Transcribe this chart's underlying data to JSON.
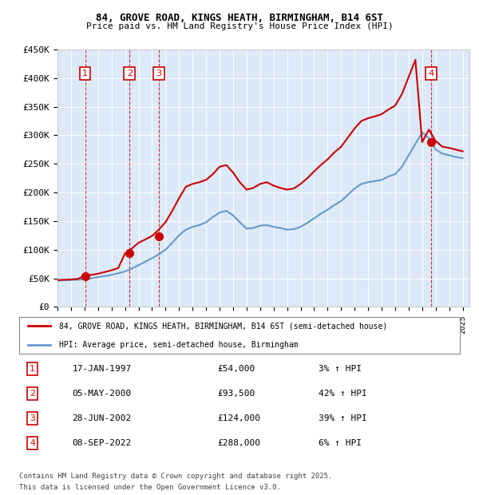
{
  "title": "84, GROVE ROAD, KINGS HEATH, BIRMINGHAM, B14 6ST",
  "subtitle": "Price paid vs. HM Land Registry's House Price Index (HPI)",
  "legend_line1": "84, GROVE ROAD, KINGS HEATH, BIRMINGHAM, B14 6ST (semi-detached house)",
  "legend_line2": "HPI: Average price, semi-detached house, Birmingham",
  "footer1": "Contains HM Land Registry data © Crown copyright and database right 2025.",
  "footer2": "This data is licensed under the Open Government Licence v3.0.",
  "ylabel": "",
  "ylim": [
    0,
    450000
  ],
  "yticks": [
    0,
    50000,
    100000,
    150000,
    200000,
    250000,
    300000,
    350000,
    400000,
    450000
  ],
  "ytick_labels": [
    "£0",
    "£50K",
    "£100K",
    "£150K",
    "£200K",
    "£250K",
    "£300K",
    "£350K",
    "£400K",
    "£450K"
  ],
  "xlim_start": 1995.0,
  "xlim_end": 2025.5,
  "background_color": "#dce9f8",
  "plot_bg_color": "#dce9f8",
  "line_color_red": "#cc0000",
  "line_color_blue": "#6699cc",
  "purchases": [
    {
      "num": 1,
      "date": "17-JAN-1997",
      "year": 1997.04,
      "price": 54000,
      "pct": "3%",
      "direction": "↑"
    },
    {
      "num": 2,
      "date": "05-MAY-2000",
      "year": 2000.34,
      "price": 93500,
      "pct": "42%",
      "direction": "↑"
    },
    {
      "num": 3,
      "date": "28-JUN-2002",
      "year": 2002.49,
      "price": 124000,
      "pct": "39%",
      "direction": "↑"
    },
    {
      "num": 4,
      "date": "08-SEP-2022",
      "year": 2022.68,
      "price": 288000,
      "pct": "6%",
      "direction": "↑"
    }
  ],
  "hpi_years": [
    1995,
    1995.5,
    1996,
    1996.5,
    1997,
    1997.5,
    1998,
    1998.5,
    1999,
    1999.5,
    2000,
    2000.5,
    2001,
    2001.5,
    2002,
    2002.5,
    2003,
    2003.5,
    2004,
    2004.5,
    2005,
    2005.5,
    2006,
    2006.5,
    2007,
    2007.5,
    2008,
    2008.5,
    2009,
    2009.5,
    2010,
    2010.5,
    2011,
    2011.5,
    2012,
    2012.5,
    2013,
    2013.5,
    2014,
    2014.5,
    2015,
    2015.5,
    2016,
    2016.5,
    2017,
    2017.5,
    2018,
    2018.5,
    2019,
    2019.5,
    2020,
    2020.5,
    2021,
    2021.5,
    2022,
    2022.5,
    2023,
    2023.5,
    2024,
    2024.5,
    2025
  ],
  "hpi_values": [
    46000,
    46500,
    47000,
    47500,
    48500,
    50000,
    52000,
    54000,
    56000,
    59000,
    62000,
    67000,
    73000,
    79000,
    85000,
    92000,
    100000,
    112000,
    125000,
    135000,
    140000,
    143000,
    148000,
    157000,
    165000,
    168000,
    160000,
    148000,
    137000,
    138000,
    142000,
    143000,
    140000,
    138000,
    135000,
    136000,
    140000,
    147000,
    155000,
    163000,
    170000,
    178000,
    185000,
    196000,
    207000,
    215000,
    218000,
    220000,
    222000,
    228000,
    232000,
    245000,
    265000,
    285000,
    305000,
    295000,
    275000,
    268000,
    265000,
    262000,
    260000
  ],
  "prop_years": [
    1995,
    1995.5,
    1996,
    1996.5,
    1997,
    1997.5,
    1998,
    1998.5,
    1999,
    1999.5,
    2000,
    2000.5,
    2001,
    2001.5,
    2002,
    2002.5,
    2003,
    2003.5,
    2004,
    2004.5,
    2005,
    2005.5,
    2006,
    2006.5,
    2007,
    2007.5,
    2008,
    2008.5,
    2009,
    2009.5,
    2010,
    2010.5,
    2011,
    2011.5,
    2012,
    2012.5,
    2013,
    2013.5,
    2014,
    2014.5,
    2015,
    2015.5,
    2016,
    2016.5,
    2017,
    2017.5,
    2018,
    2018.5,
    2019,
    2019.5,
    2020,
    2020.5,
    2021,
    2021.5,
    2022,
    2022.5,
    2023,
    2023.5,
    2024,
    2024.5,
    2025
  ],
  "prop_values": [
    47000,
    47500,
    48000,
    49000,
    54000,
    56000,
    58000,
    61000,
    64000,
    68000,
    93500,
    102000,
    112000,
    118000,
    124000,
    135000,
    148000,
    168000,
    190000,
    210000,
    215000,
    218000,
    222000,
    232000,
    245000,
    248000,
    235000,
    218000,
    205000,
    208000,
    215000,
    218000,
    212000,
    208000,
    205000,
    207000,
    215000,
    225000,
    237000,
    248000,
    258000,
    270000,
    280000,
    296000,
    312000,
    325000,
    330000,
    333000,
    337000,
    345000,
    352000,
    372000,
    402000,
    432000,
    288000,
    310000,
    290000,
    280000,
    278000,
    275000,
    272000
  ]
}
